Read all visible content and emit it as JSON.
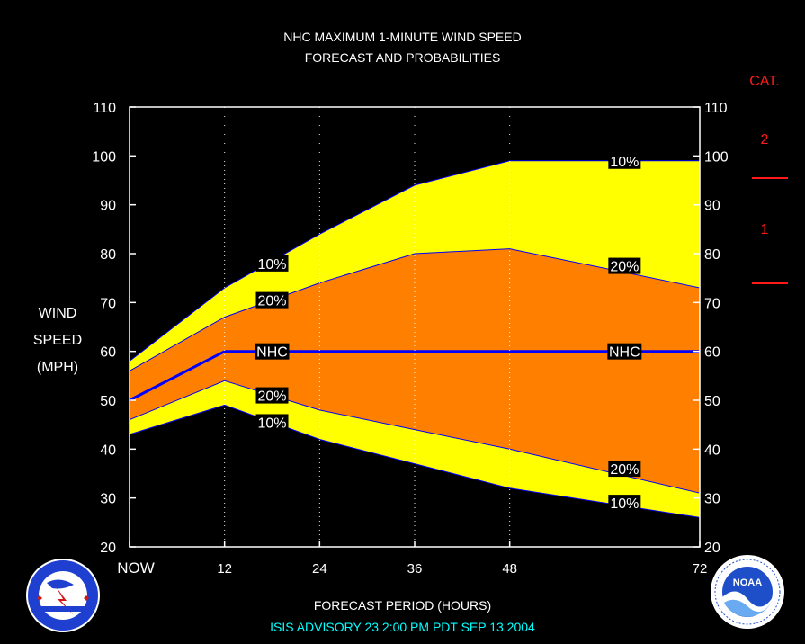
{
  "title_line1": "NHC MAXIMUM 1-MINUTE WIND SPEED",
  "title_line2": "FORECAST AND PROBABILITIES",
  "ylabel_lines": [
    "WIND",
    "SPEED",
    "(MPH)"
  ],
  "xlabel": "FORECAST PERIOD (HOURS)",
  "advisory": "ISIS   ADVISORY  23  2:00  PM  PDT  SEP  13  2004",
  "category": {
    "title": "CAT.",
    "labels": [
      "2",
      "1"
    ],
    "color": "#ff1a1a"
  },
  "colors": {
    "background": "#000000",
    "band10": "#ffff00",
    "band20": "#ff8000",
    "nhc_line": "#0000ff",
    "text": "#ffffff",
    "advisory": "#00ffff"
  },
  "logos": {
    "left": "national-weather-service-logo",
    "right": "noaa-logo",
    "left_text": "NATIONAL WEATHER SERVICE",
    "right_text": "NATIONAL OCEANIC AND ATMOSPHERIC ADMINISTRATION U.S. DEPARTMENT OF COMMERCE"
  },
  "chart_data": {
    "type": "area",
    "xlabel": "FORECAST PERIOD (HOURS)",
    "ylabel": "WIND SPEED (MPH)",
    "xlim": [
      0,
      72
    ],
    "ylim": [
      20,
      110
    ],
    "x_ticks": [
      0,
      12,
      24,
      36,
      48,
      72
    ],
    "x_tick_labels": [
      "NOW",
      "12",
      "24",
      "36",
      "48",
      "72"
    ],
    "y_ticks": [
      20,
      30,
      40,
      50,
      60,
      70,
      80,
      90,
      100,
      110
    ],
    "vertical_gridlines": [
      12,
      24,
      36,
      48
    ],
    "x": [
      0,
      12,
      24,
      36,
      48,
      72
    ],
    "series": [
      {
        "name": "10%",
        "role": "upper",
        "values": [
          58,
          73,
          84,
          94,
          99,
          99
        ]
      },
      {
        "name": "20%",
        "role": "upper",
        "values": [
          56,
          67,
          74,
          80,
          81,
          73
        ]
      },
      {
        "name": "NHC",
        "role": "forecast",
        "values": [
          50,
          60,
          60,
          60,
          60,
          60
        ]
      },
      {
        "name": "20%",
        "role": "lower",
        "values": [
          46,
          54,
          48,
          44,
          40,
          31
        ]
      },
      {
        "name": "10%",
        "role": "lower",
        "values": [
          43,
          49,
          42,
          37,
          32,
          26
        ]
      }
    ],
    "line_labels": [
      {
        "text": "10%",
        "x": 18,
        "y": 78
      },
      {
        "text": "20%",
        "x": 18,
        "y": 70.5
      },
      {
        "text": "NHC",
        "x": 18,
        "y": 60
      },
      {
        "text": "20%",
        "x": 18,
        "y": 51
      },
      {
        "text": "10%",
        "x": 18,
        "y": 45.5
      },
      {
        "text": "10%",
        "x": 62.5,
        "y": 99
      },
      {
        "text": "20%",
        "x": 62.5,
        "y": 77.5
      },
      {
        "text": "NHC",
        "x": 62.5,
        "y": 60
      },
      {
        "text": "20%",
        "x": 62.5,
        "y": 36
      },
      {
        "text": "10%",
        "x": 62.5,
        "y": 29
      }
    ],
    "category_thresholds": [
      {
        "category": "2",
        "from": 96,
        "to": 110
      },
      {
        "category": "1",
        "from": 74,
        "to": 95
      }
    ]
  }
}
